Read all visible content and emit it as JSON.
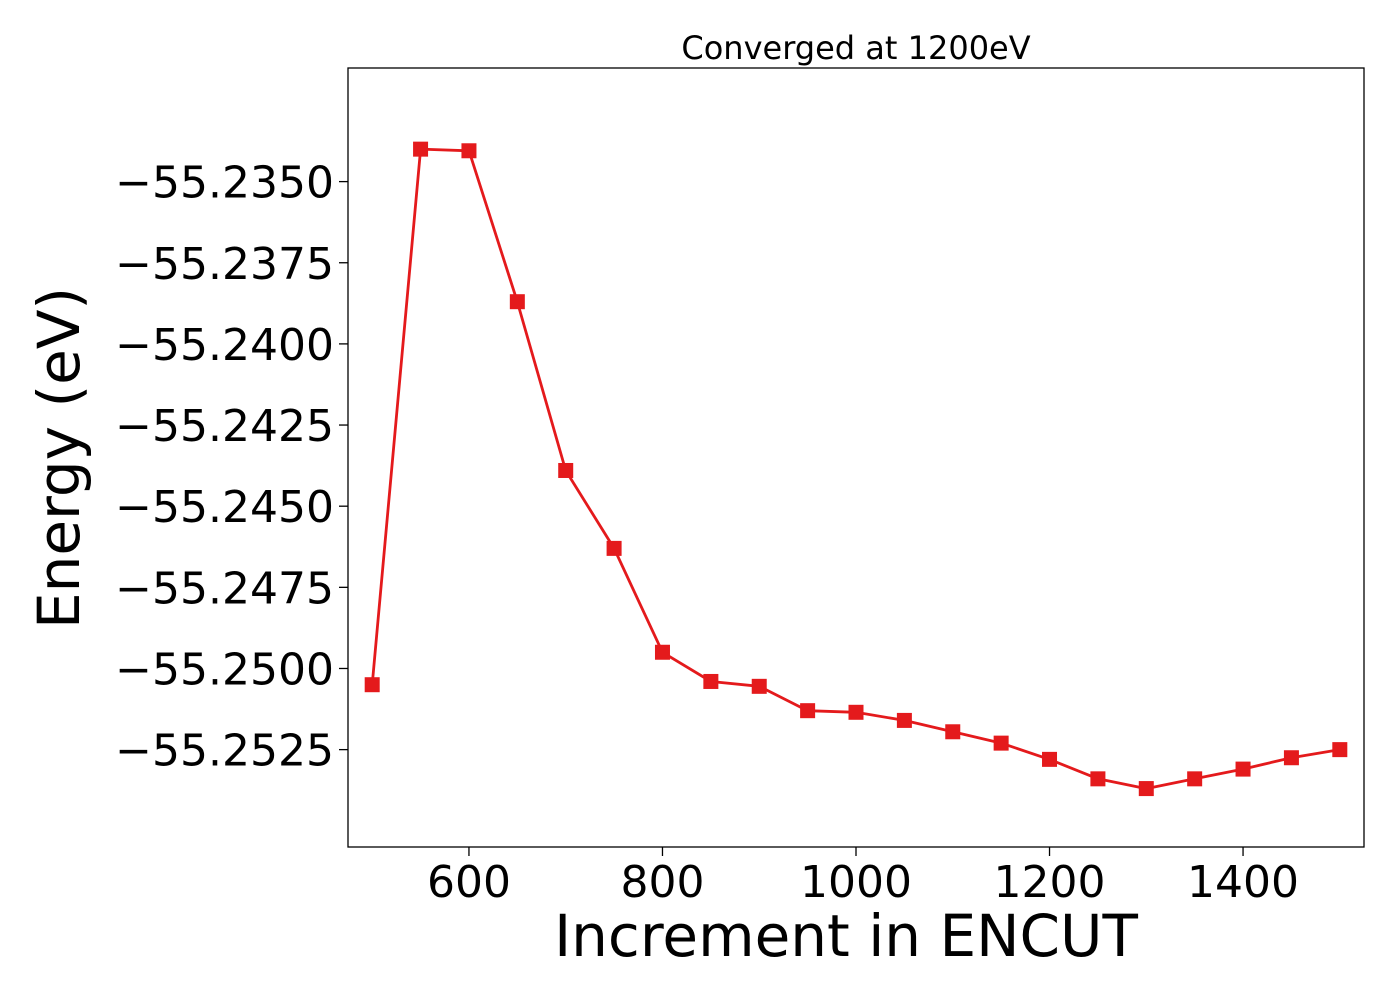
{
  "chart_data": {
    "type": "line",
    "title": "Converged at 1200eV",
    "xlabel": "Increment in ENCUT",
    "ylabel": "Energy (eV)",
    "xlim": [
      475,
      1525
    ],
    "ylim": [
      -55.2555,
      -55.2315
    ],
    "x_ticks": [
      600,
      800,
      1000,
      1200,
      1400
    ],
    "x_tick_labels": [
      "600",
      "800",
      "1000",
      "1200",
      "1400"
    ],
    "y_ticks": [
      -55.235,
      -55.2375,
      -55.24,
      -55.2425,
      -55.245,
      -55.2475,
      -55.25,
      -55.2525
    ],
    "y_tick_labels": [
      "−55.2350",
      "−55.2375",
      "−55.2400",
      "−55.2425",
      "−55.2450",
      "−55.2475",
      "−55.2500",
      "−55.2525"
    ],
    "grid": false,
    "line_color": "#e41a1c",
    "marker": "square",
    "x": [
      500,
      550,
      600,
      650,
      700,
      750,
      800,
      850,
      900,
      950,
      1000,
      1050,
      1100,
      1150,
      1200,
      1250,
      1300,
      1350,
      1400,
      1450,
      1500
    ],
    "y": [
      -55.2505,
      -55.234,
      -55.23405,
      -55.2387,
      -55.2439,
      -55.2463,
      -55.2495,
      -55.2504,
      -55.25055,
      -55.2513,
      -55.25135,
      -55.2516,
      -55.25195,
      -55.2523,
      -55.2528,
      -55.2534,
      -55.2537,
      -55.2534,
      -55.2531,
      -55.25275,
      -55.2525
    ]
  }
}
